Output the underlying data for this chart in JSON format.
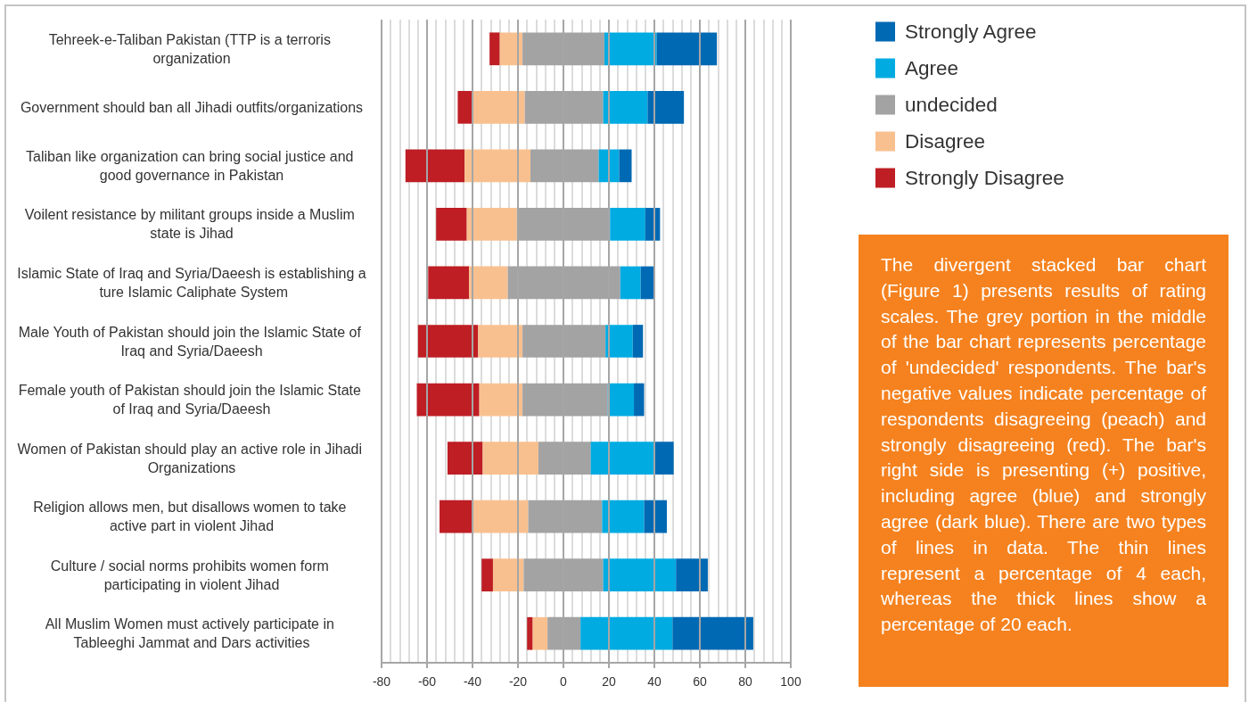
{
  "chart_data": {
    "type": "bar",
    "orientation": "horizontal",
    "categories": [
      "Tehreek-e-Taliban Pakistan (TTP is a terroris organization",
      "Government should ban all Jihadi outfits/organizations",
      "Taliban like organization can bring social justice and good governance in Pakistan",
      "Voilent resistance by militant groups inside a Muslim state is Jihad",
      "Islamic State of Iraq and Syria/Daeesh is establishing a ture Islamic Caliphate System",
      "Male Youth of Pakistan should join the Islamic State of Iraq and Syria/Daeesh",
      "Female youth of Pakistan should join the Islamic State of Iraq and Syria/Daeesh",
      "Women of Pakistan should play an active role in Jihadi Organizations",
      "Religion allows men, but disallows women to take active part in violent Jihad",
      "Culture / social norms prohibits women form participating in violent Jihad",
      "All Muslim Women must actively participate in Tableeghi Jammat and Dars activities"
    ],
    "series": [
      {
        "name": "Strongly Disagree",
        "color": "#be1e24",
        "base": [
          -32.5,
          -46.5,
          -69.5,
          -56,
          -59.5,
          -64,
          -64.5,
          -51,
          -54.5,
          -36,
          -16
        ],
        "values": [
          4.5,
          6.5,
          26,
          13.5,
          18,
          26.5,
          27.5,
          15.5,
          15,
          5,
          2.5
        ]
      },
      {
        "name": "Disagree",
        "color": "#f9c08f",
        "base": [
          -28,
          -40,
          -43.5,
          -42.5,
          -41.5,
          -37.5,
          -37,
          -35.5,
          -39.5,
          -31,
          -13.5
        ],
        "values": [
          10,
          23,
          29,
          22,
          17,
          19.5,
          19,
          24.5,
          24,
          13.5,
          6.5
        ]
      },
      {
        "name": "undecided",
        "color": "#a3a3a3",
        "base": [
          -18,
          -17,
          -14.5,
          -20.5,
          -24.5,
          -18,
          -18,
          -11,
          -15.5,
          -17.5,
          -7
        ],
        "values": [
          36,
          34.5,
          30,
          41,
          49.5,
          36.5,
          37.5,
          23,
          32.5,
          35,
          14.5
        ]
      },
      {
        "name": "Agree",
        "color": "#00abe2",
        "base": [
          18,
          17.5,
          15.5,
          20.5,
          25,
          18.5,
          19.5,
          12,
          17,
          17.5,
          7.5
        ],
        "values": [
          23,
          19.5,
          9,
          15.5,
          9,
          12,
          11.5,
          28,
          18.5,
          32,
          40.5
        ]
      },
      {
        "name": "Strongly Agree",
        "color": "#0069b3",
        "base": [
          41,
          37,
          24.5,
          36,
          34,
          30.5,
          31,
          40,
          35.5,
          49.5,
          48
        ],
        "values": [
          26.5,
          16,
          5.5,
          6.5,
          6,
          4.5,
          4.5,
          8.5,
          10,
          14,
          35.5
        ]
      }
    ],
    "xlim": [
      -80,
      100
    ],
    "xticks": [
      -80,
      {
        "value": -76,
        "label": null
      },
      {
        "value": -72,
        "label": null
      },
      {
        "value": -68,
        "label": null
      },
      {
        "value": -64,
        "label": null
      },
      -60,
      {
        "value": -56,
        "label": null
      },
      {
        "value": -52,
        "label": null
      },
      {
        "value": -48,
        "label": null
      },
      {
        "value": -44,
        "label": null
      },
      -40,
      {
        "value": -36,
        "label": null
      },
      {
        "value": -32,
        "label": null
      },
      {
        "value": -28,
        "label": null
      },
      {
        "value": -24,
        "label": null
      },
      -20,
      {
        "value": -16,
        "label": null
      },
      {
        "value": -12,
        "label": null
      },
      {
        "value": -8,
        "label": null
      },
      {
        "value": -4,
        "label": null
      },
      0,
      {
        "value": 4,
        "label": null
      },
      {
        "value": 8,
        "label": null
      },
      {
        "value": 12,
        "label": null
      },
      {
        "value": 16,
        "label": null
      },
      20,
      {
        "value": 24,
        "label": null
      },
      {
        "value": 28,
        "label": null
      },
      {
        "value": 32,
        "label": null
      },
      {
        "value": 36,
        "label": null
      },
      40,
      {
        "value": 44,
        "label": null
      },
      {
        "value": 48,
        "label": null
      },
      {
        "value": 52,
        "label": null
      },
      {
        "value": 56,
        "label": null
      },
      60,
      {
        "value": 64,
        "label": null
      },
      {
        "value": 68,
        "label": null
      },
      {
        "value": 72,
        "label": null
      },
      {
        "value": 76,
        "label": null
      },
      80,
      {
        "value": 84,
        "label": null
      },
      {
        "value": 88,
        "label": null
      },
      {
        "value": 92,
        "label": null
      },
      {
        "value": 96,
        "label": null
      },
      100
    ],
    "grid": "x",
    "legend": "top right",
    "annotations": [
      "The divergent stacked bar chart (Figure 1) presents results of rating scales. The grey portion in the middle of the bar chart represents percentage of 'undecided' respondents. The bar's negative values indicate percentage of respondents disagreeing (peach) and strongly disagreeing (red). The bar's right side is presenting (+) positive, including agree (blue) and strongly agree (dark blue). There are two types of lines in data. The thin lines represent a percentage of 4 each, whereas the thick lines show a percentage of 20 each."
    ]
  }
}
